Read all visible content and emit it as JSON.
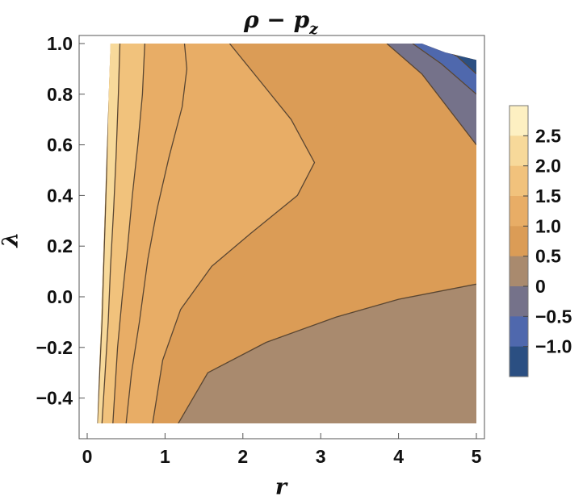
{
  "chart_data": {
    "type": "contour",
    "title_parts": {
      "base": "ρ − p",
      "subscript": "z"
    },
    "xlabel": "r",
    "ylabel": "λ",
    "xlim": [
      0,
      5
    ],
    "ylim": [
      -0.5,
      1.0
    ],
    "xticks": [
      "0",
      "1",
      "2",
      "3",
      "4",
      "5"
    ],
    "yticks": [
      "−0.4",
      "−0.2",
      "0.0",
      "0.2",
      "0.4",
      "0.6",
      "0.8",
      "1.0"
    ],
    "legend": {
      "placement": "right",
      "labels": [
        "2.5",
        "2.0",
        "1.5",
        "1.0",
        "0.5",
        "0",
        "−0.5",
        "−1.0"
      ],
      "levels": [
        {
          "range": [
            2.5,
            3.0
          ],
          "color": "#fdf0c2"
        },
        {
          "range": [
            2.0,
            2.5
          ],
          "color": "#f7d99a"
        },
        {
          "range": [
            1.5,
            2.0
          ],
          "color": "#f1c27c"
        },
        {
          "range": [
            1.0,
            1.5
          ],
          "color": "#e8ad66"
        },
        {
          "range": [
            0.5,
            1.0
          ],
          "color": "#db9c56"
        },
        {
          "range": [
            0.0,
            0.5
          ],
          "color": "#a98a6e"
        },
        {
          "range": [
            -0.5,
            0.0
          ],
          "color": "#75728a"
        },
        {
          "range": [
            -1.0,
            -0.5
          ],
          "color": "#4f68ad"
        },
        {
          "range": [
            -1.5,
            -1.0
          ],
          "color": "#2b4f82"
        }
      ]
    },
    "contours": [
      {
        "level": 2.5,
        "points": [
          [
            0.29,
            1.0
          ],
          [
            0.27,
            0.8
          ],
          [
            0.25,
            0.5
          ],
          [
            0.23,
            0.3
          ],
          [
            0.21,
            0.1
          ],
          [
            0.19,
            -0.1
          ],
          [
            0.16,
            -0.3
          ],
          [
            0.13,
            -0.5
          ]
        ]
      },
      {
        "level": 2.0,
        "points": [
          [
            0.42,
            1.0
          ],
          [
            0.4,
            0.8
          ],
          [
            0.37,
            0.55
          ],
          [
            0.34,
            0.35
          ],
          [
            0.3,
            0.12
          ],
          [
            0.27,
            -0.1
          ],
          [
            0.23,
            -0.3
          ],
          [
            0.19,
            -0.5
          ]
        ]
      },
      {
        "level": 1.5,
        "points": [
          [
            0.74,
            1.0
          ],
          [
            0.71,
            0.8
          ],
          [
            0.65,
            0.6
          ],
          [
            0.58,
            0.4
          ],
          [
            0.52,
            0.2
          ],
          [
            0.45,
            0.0
          ],
          [
            0.39,
            -0.2
          ],
          [
            0.33,
            -0.5
          ]
        ]
      },
      {
        "level": 1.0,
        "points": [
          [
            1.25,
            1.0
          ],
          [
            1.28,
            0.9
          ],
          [
            1.22,
            0.75
          ],
          [
            1.05,
            0.55
          ],
          [
            0.9,
            0.35
          ],
          [
            0.78,
            0.15
          ],
          [
            0.67,
            -0.1
          ],
          [
            0.57,
            -0.3
          ],
          [
            0.5,
            -0.5
          ]
        ]
      },
      {
        "level": 0.5,
        "points": [
          [
            1.83,
            1.0
          ],
          [
            2.2,
            0.86
          ],
          [
            2.62,
            0.7
          ],
          [
            2.92,
            0.53
          ],
          [
            2.7,
            0.4
          ],
          [
            2.1,
            0.25
          ],
          [
            1.6,
            0.12
          ],
          [
            1.2,
            -0.05
          ],
          [
            0.97,
            -0.25
          ],
          [
            0.84,
            -0.5
          ]
        ]
      },
      {
        "level": 0.0,
        "points": [
          [
            1.17,
            -0.5
          ],
          [
            1.55,
            -0.3
          ],
          [
            2.3,
            -0.18
          ],
          [
            3.2,
            -0.08
          ],
          [
            4.0,
            -0.01
          ],
          [
            5.0,
            0.05
          ]
        ]
      },
      {
        "level": 0.0,
        "points": [
          [
            3.85,
            1.0
          ],
          [
            4.3,
            0.88
          ],
          [
            5.0,
            0.6
          ]
        ]
      },
      {
        "level": -0.5,
        "points": [
          [
            4.18,
            1.0
          ],
          [
            4.55,
            0.92
          ],
          [
            5.0,
            0.8
          ]
        ]
      },
      {
        "level": -1.0,
        "points": [
          [
            4.45,
            1.0
          ],
          [
            4.75,
            0.95
          ],
          [
            5.0,
            0.88
          ]
        ]
      }
    ]
  }
}
